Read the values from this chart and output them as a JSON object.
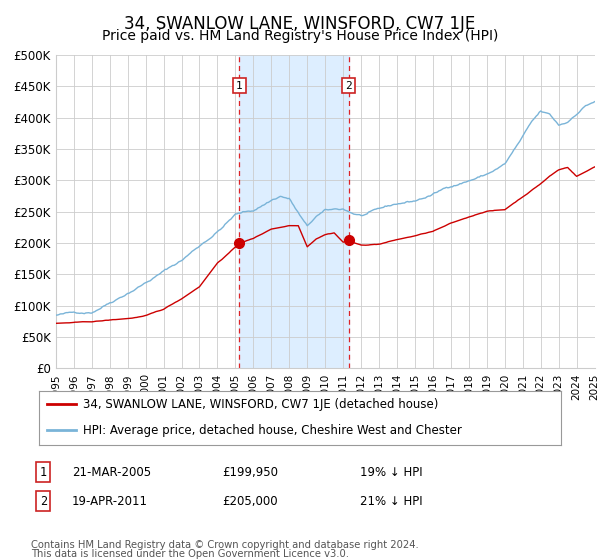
{
  "title": "34, SWANLOW LANE, WINSFORD, CW7 1JE",
  "subtitle": "Price paid vs. HM Land Registry's House Price Index (HPI)",
  "title_fontsize": 12,
  "subtitle_fontsize": 10,
  "ylim": [
    0,
    500000
  ],
  "yticks": [
    0,
    50000,
    100000,
    150000,
    200000,
    250000,
    300000,
    350000,
    400000,
    450000,
    500000
  ],
  "ytick_labels": [
    "£0",
    "£50K",
    "£100K",
    "£150K",
    "£200K",
    "£250K",
    "£300K",
    "£350K",
    "£400K",
    "£450K",
    "£500K"
  ],
  "hpi_color": "#7ab4d8",
  "price_color": "#cc0000",
  "marker_color": "#cc0000",
  "background_color": "#ffffff",
  "grid_color": "#cccccc",
  "sale1_date_num": 2005.22,
  "sale1_price": 199950,
  "sale1_label": "1",
  "sale2_date_num": 2011.3,
  "sale2_price": 205000,
  "sale2_label": "2",
  "legend1_text": "34, SWANLOW LANE, WINSFORD, CW7 1JE (detached house)",
  "legend2_text": "HPI: Average price, detached house, Cheshire West and Chester",
  "note1_label": "1",
  "note1_date": "21-MAR-2005",
  "note1_price": "£199,950",
  "note1_pct": "19% ↓ HPI",
  "note2_label": "2",
  "note2_date": "19-APR-2011",
  "note2_price": "£205,000",
  "note2_pct": "21% ↓ HPI",
  "footnote1": "Contains HM Land Registry data © Crown copyright and database right 2024.",
  "footnote2": "This data is licensed under the Open Government Licence v3.0.",
  "shaded_region_color": "#ddeeff"
}
